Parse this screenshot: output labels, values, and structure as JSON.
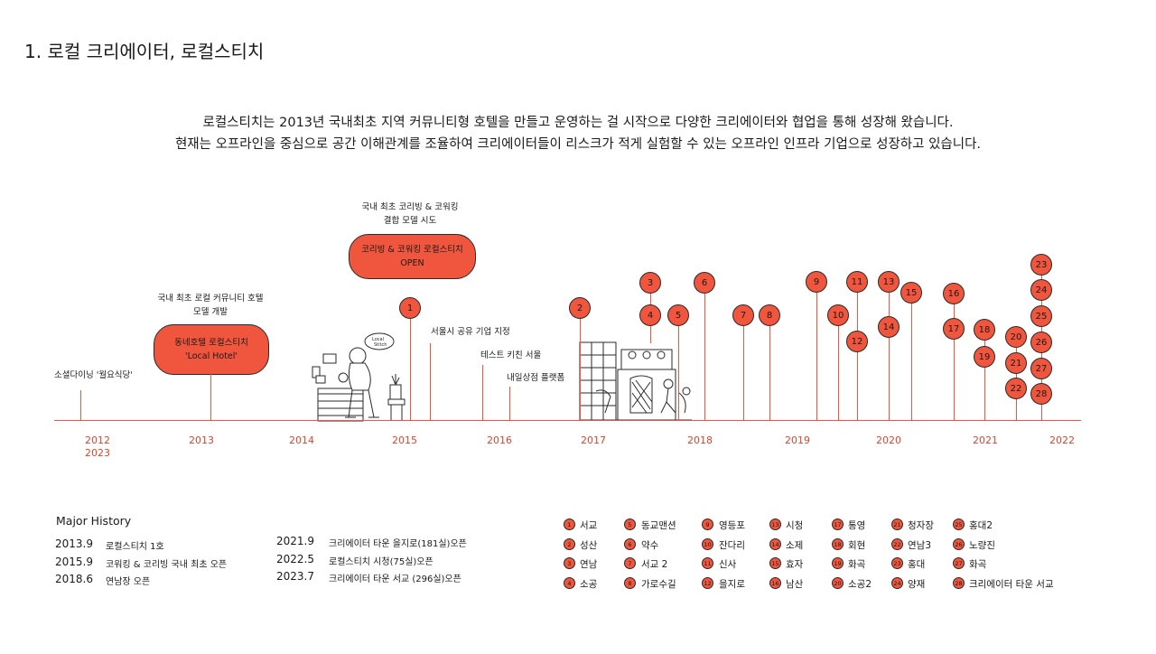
{
  "page": {
    "title": "1. 로컬 크리에이터, 로컬스티치",
    "intro_line1": "로컬스티치는 2013년 국내최초 지역 커뮤니티형 호텔을 만들고 운영하는 걸 시작으로 다양한 크리에이터와 협업을 통해 성장해 왔습니다.",
    "intro_line2": "현재는 오프라인을 중심으로 공간 이해관계를 조율하여 크리에이터들이 리스크가 적게 실험할 수 있는 오프라인 인프라 기업으로 성장하고 있습니다."
  },
  "timeline": {
    "years": [
      "2012",
      "2023",
      "2013",
      "2014",
      "2015",
      "2016",
      "2017",
      "2018",
      "2019",
      "2020",
      "2021",
      "2022"
    ],
    "annotations": {
      "social_dining": "소셜다이닝 '월요식당'",
      "hotel_note_1": "국내 최초 로컬 커뮤니티 호텔",
      "hotel_note_2": "모델 개발",
      "hotel_pill_1": "동네호텔 로컬스티치",
      "hotel_pill_2": "'Local Hotel'",
      "cowork_note_1": "국내 최초 코리빙 & 코워킹",
      "cowork_note_2": "결합 모델 시도",
      "cowork_pill_1": "코리빙 & 코워킹 로컬스티치",
      "cowork_pill_2": "OPEN",
      "seoul_share": "서울시 공유 기업 지정",
      "test_kitchen": "테스트 키친 서울",
      "daily_store": "내일상점 플랫폼"
    },
    "markers": [
      "1",
      "2",
      "3",
      "4",
      "5",
      "6",
      "7",
      "8",
      "9",
      "10",
      "11",
      "12",
      "13",
      "14",
      "15",
      "16",
      "17",
      "18",
      "19",
      "20",
      "21",
      "22",
      "23",
      "24",
      "25",
      "26",
      "27",
      "28"
    ]
  },
  "major_history": {
    "title": "Major History",
    "items": [
      {
        "date": "2013.9",
        "text": "로컬스티치 1호"
      },
      {
        "date": "2015.9",
        "text": "코워킹 & 코리빙 국내 최초 오픈"
      },
      {
        "date": "2018.6",
        "text": "연남장 오픈"
      },
      {
        "date": "2021.9",
        "text": "크리에이터 타운 을지로(181실)오픈"
      },
      {
        "date": "2022.5",
        "text": "로컬스티치 시청(75실)오픈"
      },
      {
        "date": "2023.7",
        "text": "크리에이터 타운 서교 (296실)오픈"
      }
    ]
  },
  "legend": [
    {
      "n": "1",
      "name": "서교"
    },
    {
      "n": "2",
      "name": "성산"
    },
    {
      "n": "3",
      "name": "연남"
    },
    {
      "n": "4",
      "name": "소공"
    },
    {
      "n": "5",
      "name": "동교맨션"
    },
    {
      "n": "6",
      "name": "약수"
    },
    {
      "n": "7",
      "name": "서교 2"
    },
    {
      "n": "8",
      "name": "가로수길"
    },
    {
      "n": "9",
      "name": "영등포"
    },
    {
      "n": "10",
      "name": "잔다리"
    },
    {
      "n": "11",
      "name": "신사"
    },
    {
      "n": "12",
      "name": "을지로"
    },
    {
      "n": "13",
      "name": "시청"
    },
    {
      "n": "14",
      "name": "소제"
    },
    {
      "n": "15",
      "name": "효자"
    },
    {
      "n": "16",
      "name": "남산"
    },
    {
      "n": "17",
      "name": "통영"
    },
    {
      "n": "18",
      "name": "회현"
    },
    {
      "n": "19",
      "name": "화곡"
    },
    {
      "n": "20",
      "name": "소공2"
    },
    {
      "n": "21",
      "name": "청자장"
    },
    {
      "n": "22",
      "name": "연남3"
    },
    {
      "n": "23",
      "name": "홍대"
    },
    {
      "n": "24",
      "name": "양재"
    },
    {
      "n": "25",
      "name": "홍대2"
    },
    {
      "n": "26",
      "name": "노량진"
    },
    {
      "n": "27",
      "name": "화곡"
    },
    {
      "n": "28",
      "name": "크리에이터 타운 서교"
    }
  ],
  "colors": {
    "accent": "#f0553d",
    "outline": "#2a2a2a",
    "year_text": "#e0432b"
  }
}
